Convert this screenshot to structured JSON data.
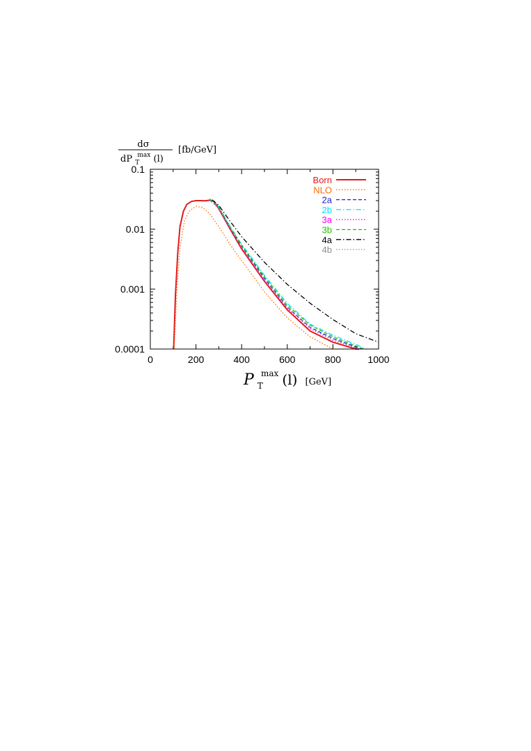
{
  "chart_data": {
    "type": "line",
    "title": "",
    "ylabel": {
      "numerator": "dσ",
      "denominator_prefix": "dP",
      "denominator_sub": "T",
      "denominator_sup": "max",
      "denominator_suffix": "(l)",
      "unit": "[fb/GeV]"
    },
    "xlabel": {
      "main": "P",
      "sub": "T",
      "sup": "max",
      "suffix": "(l)",
      "unit": "[GeV]"
    },
    "xlim": [
      0,
      1000
    ],
    "ylim": [
      0.0001,
      0.1
    ],
    "yscale": "log",
    "x_ticks": [
      "0",
      "200",
      "400",
      "600",
      "800",
      "1000"
    ],
    "y_ticks": [
      "0.1",
      "0.01",
      "0.001",
      "0.0001"
    ],
    "legend_position": "top-right",
    "series": [
      {
        "name": "Born",
        "color": "#e31a1c",
        "dash": "solid",
        "x": [
          102,
          110,
          120,
          130,
          145,
          160,
          180,
          200,
          220,
          240,
          260,
          280,
          300,
          350,
          400,
          500,
          600,
          700,
          800,
          900,
          915
        ],
        "y": [
          0.0001,
          0.0008,
          0.004,
          0.011,
          0.02,
          0.026,
          0.029,
          0.03,
          0.03,
          0.0298,
          0.0305,
          0.029,
          0.022,
          0.01,
          0.0047,
          0.00135,
          0.00045,
          0.0002,
          0.00013,
          0.0001,
          0.0001
        ]
      },
      {
        "name": "NLO",
        "color": "#ff6a00",
        "dash": "dotted",
        "x": [
          105,
          115,
          130,
          150,
          170,
          200,
          230,
          260,
          300,
          350,
          400,
          500,
          600,
          700,
          800
        ],
        "y": [
          0.0001,
          0.0008,
          0.005,
          0.014,
          0.02,
          0.024,
          0.023,
          0.018,
          0.011,
          0.0055,
          0.003,
          0.0009,
          0.00033,
          0.00016,
          0.0001
        ]
      },
      {
        "name": "2a",
        "color": "#2020d0",
        "dash": "dashed",
        "x": [
          260,
          300,
          350,
          400,
          500,
          600,
          700,
          800,
          925
        ],
        "y": [
          0.031,
          0.023,
          0.0105,
          0.0052,
          0.0015,
          0.0005,
          0.00023,
          0.00015,
          0.0001
        ]
      },
      {
        "name": "2b",
        "color": "#00e0ff",
        "dash": "dashdot",
        "x": [
          260,
          300,
          350,
          400,
          500,
          600,
          700,
          800,
          900,
          945
        ],
        "y": [
          0.032,
          0.024,
          0.011,
          0.0056,
          0.0017,
          0.00058,
          0.00026,
          0.00017,
          0.00012,
          0.0001
        ]
      },
      {
        "name": "3a",
        "color": "#ff00ff",
        "dash": "dotted",
        "x": [
          260,
          300,
          350,
          400,
          500,
          600,
          700,
          800,
          915
        ],
        "y": [
          0.031,
          0.022,
          0.0102,
          0.005,
          0.0014,
          0.00048,
          0.00022,
          0.00014,
          0.0001
        ]
      },
      {
        "name": "3b",
        "color": "#22c000",
        "dash": "dashed",
        "x": [
          260,
          300,
          350,
          400,
          500,
          600,
          700,
          800,
          935
        ],
        "y": [
          0.032,
          0.023,
          0.0108,
          0.0054,
          0.0016,
          0.00054,
          0.00025,
          0.00016,
          0.0001
        ]
      },
      {
        "name": "4a",
        "color": "#000000",
        "dash": "dashdot",
        "x": [
          270,
          300,
          350,
          400,
          500,
          600,
          700,
          800,
          900,
          1000
        ],
        "y": [
          0.031,
          0.025,
          0.0135,
          0.0075,
          0.0028,
          0.0012,
          0.00058,
          0.00031,
          0.00018,
          0.00013
        ]
      },
      {
        "name": "4b",
        "color": "#909090",
        "dash": "dotted",
        "x": [
          260,
          300,
          350,
          400,
          500,
          600,
          700,
          800,
          920
        ],
        "y": [
          0.031,
          0.0225,
          0.0104,
          0.0051,
          0.00145,
          0.0005,
          0.00023,
          0.00014,
          0.0001
        ]
      }
    ]
  }
}
